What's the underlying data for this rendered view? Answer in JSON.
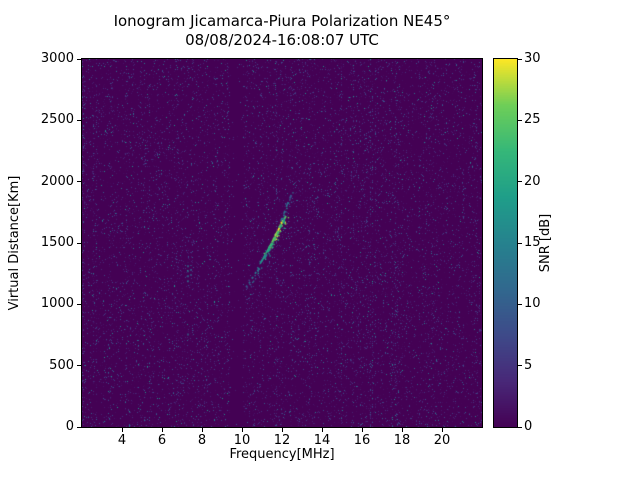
{
  "chart_data": {
    "type": "heatmap",
    "title": "Ionogram Jicamarca-Piura Polarization NE45°",
    "subtitle": "08/08/2024-16:08:07 UTC",
    "xlabel": "Frequency[MHz]",
    "ylabel": "Virtual Distance[Km]",
    "xlim": [
      2,
      22
    ],
    "ylim": [
      0,
      3000
    ],
    "x_ticks": [
      4,
      6,
      8,
      10,
      12,
      14,
      16,
      18,
      20
    ],
    "y_ticks": [
      0,
      500,
      1000,
      1500,
      2000,
      2500,
      3000
    ],
    "grid": false,
    "colorbar": {
      "label": "SNR [dB]",
      "min": 0,
      "max": 30,
      "ticks": [
        0,
        5,
        10,
        15,
        20,
        25,
        30
      ],
      "colormap": "viridis",
      "colormap_stops": [
        "#440154",
        "#482878",
        "#3e4a89",
        "#31688e",
        "#26828e",
        "#1f9e89",
        "#35b779",
        "#6ece58",
        "#fde725"
      ]
    },
    "background_snr_db": 0,
    "noise": {
      "density": 0.1,
      "seed": 42,
      "quiet_band_mhz": [
        9.4,
        10.0
      ]
    },
    "echo_traces": [
      {
        "name": "leading-edge-dots",
        "dash": [
          2,
          4
        ],
        "points": [
          [
            10.2,
            1140,
            8
          ],
          [
            10.35,
            1170,
            10
          ],
          [
            10.5,
            1210,
            12
          ],
          [
            10.65,
            1250,
            13
          ],
          [
            10.8,
            1285,
            14
          ],
          [
            10.95,
            1320,
            15
          ]
        ]
      },
      {
        "name": "main-f-trace",
        "dash": [
          6,
          4
        ],
        "points": [
          [
            10.9,
            1330,
            16
          ],
          [
            11.05,
            1370,
            18
          ],
          [
            11.2,
            1415,
            21
          ],
          [
            11.35,
            1460,
            23
          ],
          [
            11.5,
            1505,
            25
          ],
          [
            11.65,
            1555,
            27
          ],
          [
            11.8,
            1600,
            29
          ],
          [
            11.95,
            1650,
            30
          ],
          [
            12.1,
            1690,
            27
          ],
          [
            12.2,
            1720,
            22
          ]
        ]
      },
      {
        "name": "multipath-trace",
        "dash": [
          4,
          4
        ],
        "points": [
          [
            11.15,
            1380,
            14
          ],
          [
            11.3,
            1425,
            17
          ],
          [
            11.45,
            1470,
            20
          ],
          [
            11.6,
            1520,
            23
          ],
          [
            11.75,
            1570,
            24
          ],
          [
            11.9,
            1620,
            22
          ],
          [
            12.05,
            1665,
            19
          ],
          [
            12.15,
            1700,
            16
          ]
        ]
      },
      {
        "name": "upper-faint-trace",
        "dash": [
          3,
          4
        ],
        "points": [
          [
            11.95,
            1680,
            12
          ],
          [
            12.1,
            1740,
            13
          ],
          [
            12.25,
            1810,
            12
          ],
          [
            12.4,
            1870,
            10
          ],
          [
            12.5,
            1900,
            9
          ]
        ]
      }
    ],
    "interference_lines": [
      {
        "freq_mhz": 7.3,
        "km_range": [
          1180,
          1345
        ],
        "snr": 13
      },
      {
        "freq_mhz": 7.45,
        "km_range": [
          1230,
          1320
        ],
        "snr": 10
      },
      {
        "freq_mhz": 7.3,
        "km_range": [
          745,
          785
        ],
        "snr": 11
      }
    ]
  }
}
